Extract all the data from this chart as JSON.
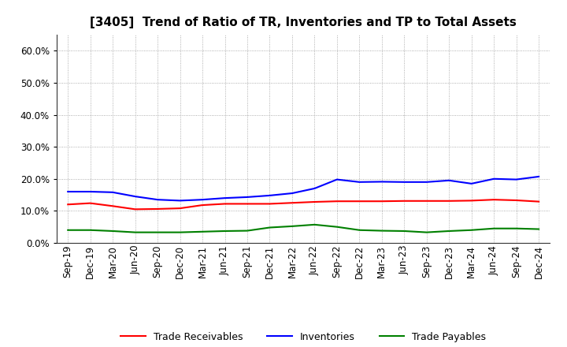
{
  "title": "[3405]  Trend of Ratio of TR, Inventories and TP to Total Assets",
  "labels": [
    "Sep-19",
    "Dec-19",
    "Mar-20",
    "Jun-20",
    "Sep-20",
    "Dec-20",
    "Mar-21",
    "Jun-21",
    "Sep-21",
    "Dec-21",
    "Mar-22",
    "Jun-22",
    "Sep-22",
    "Dec-22",
    "Mar-23",
    "Jun-23",
    "Sep-23",
    "Dec-23",
    "Mar-24",
    "Jun-24",
    "Sep-24",
    "Dec-24"
  ],
  "trade_receivables": [
    0.12,
    0.124,
    0.115,
    0.105,
    0.106,
    0.108,
    0.118,
    0.122,
    0.122,
    0.122,
    0.125,
    0.128,
    0.13,
    0.13,
    0.13,
    0.131,
    0.131,
    0.131,
    0.132,
    0.135,
    0.133,
    0.129
  ],
  "inventories": [
    0.16,
    0.16,
    0.158,
    0.145,
    0.135,
    0.132,
    0.135,
    0.14,
    0.143,
    0.148,
    0.155,
    0.17,
    0.198,
    0.19,
    0.191,
    0.19,
    0.19,
    0.195,
    0.185,
    0.2,
    0.198,
    0.207
  ],
  "trade_payables": [
    0.04,
    0.04,
    0.037,
    0.033,
    0.033,
    0.033,
    0.035,
    0.037,
    0.038,
    0.048,
    0.052,
    0.057,
    0.05,
    0.04,
    0.038,
    0.037,
    0.033,
    0.037,
    0.04,
    0.045,
    0.045,
    0.043
  ],
  "tr_color": "#ff0000",
  "inv_color": "#0000ff",
  "tp_color": "#008000",
  "ylim": [
    0.0,
    0.65
  ],
  "yticks": [
    0.0,
    0.1,
    0.2,
    0.3,
    0.4,
    0.5,
    0.6
  ],
  "background_color": "#ffffff",
  "grid_color": "#999999",
  "legend_labels": [
    "Trade Receivables",
    "Inventories",
    "Trade Payables"
  ],
  "title_fontsize": 11,
  "tick_fontsize": 8.5,
  "legend_fontsize": 9
}
